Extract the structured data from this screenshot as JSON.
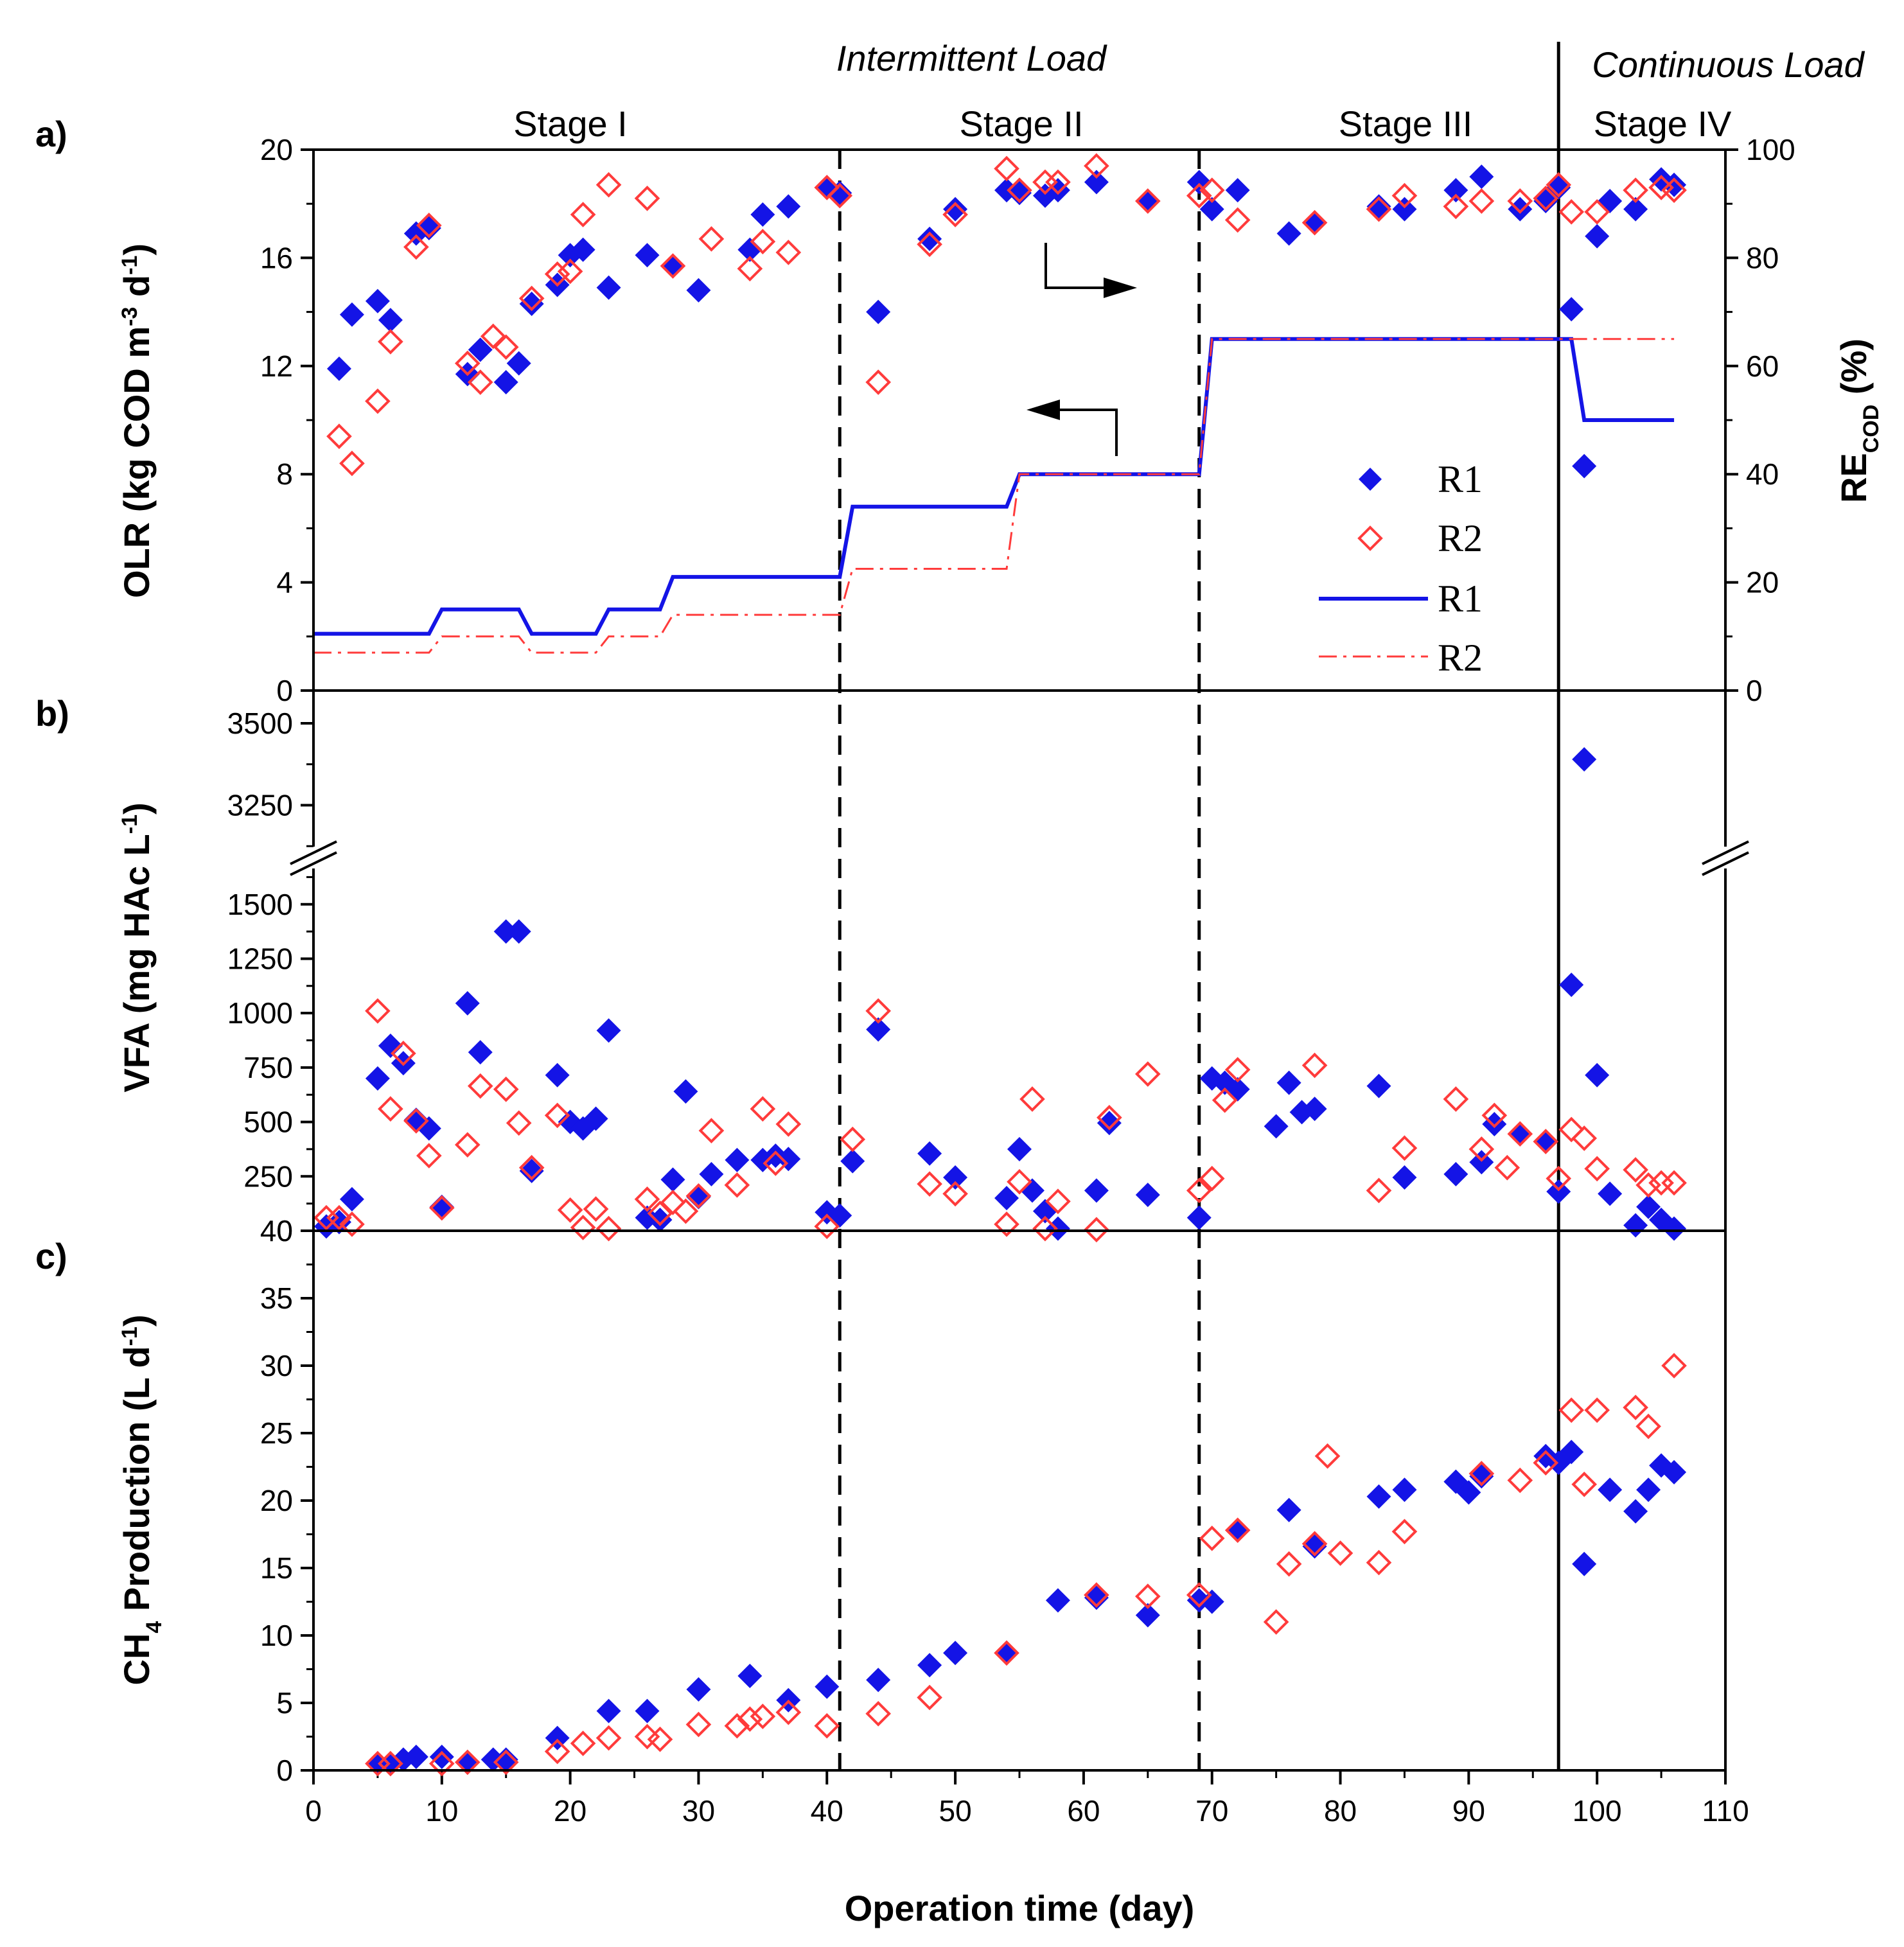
{
  "figure": {
    "x_axis_title": "Operation time (day)",
    "load_labels": {
      "intermittent": "Intermittent Load",
      "continuous": "Continuous Load"
    },
    "stages": [
      "Stage I",
      "Stage II",
      "Stage III",
      "Stage IV"
    ],
    "panel_labels": [
      "a)",
      "b)",
      "c)"
    ],
    "arrows": {
      "right_arrow": "points to right axis (RE)",
      "left_arrow": "points to left axis (OLR)"
    }
  },
  "legend": {
    "r1_marker": "R1",
    "r2_marker": "R2",
    "r1_line": "R1",
    "r2_line": "R2"
  },
  "colors": {
    "r1": "#1414e6",
    "r2": "#ff3b3b",
    "axis": "#000000"
  },
  "chart_data": [
    {
      "type": "line",
      "panel": "a",
      "ylabel": "OLR (kg COD m-3 d-1)",
      "ylabel_parts": {
        "main": "OLR (kg COD m",
        "exp1": "-3",
        "mid": " d",
        "exp2": "-1",
        "end": ")"
      },
      "ylabel_right": "RE COD (%)",
      "ylabel_right_parts": {
        "main": "RE",
        "sub": "COD",
        "end": " (%)"
      },
      "xlim": [
        0,
        110
      ],
      "ylim": [
        0,
        20
      ],
      "ylim_right": [
        0,
        100
      ],
      "yticks": [
        0,
        4,
        8,
        12,
        16,
        20
      ],
      "yticks_right": [
        0,
        20,
        40,
        60,
        80,
        100
      ],
      "olr_series": [
        {
          "name": "R1",
          "style": "solid",
          "x": [
            0,
            9,
            10,
            16,
            17,
            22,
            23,
            27,
            28,
            41,
            42,
            54,
            55,
            69,
            70,
            97,
            98,
            99,
            106
          ],
          "y": [
            2.1,
            2.1,
            3.0,
            3.0,
            2.1,
            2.1,
            3.0,
            3.0,
            4.2,
            4.2,
            6.8,
            6.8,
            8.0,
            8.0,
            13.0,
            13.0,
            13.0,
            10.0,
            10.0
          ]
        },
        {
          "name": "R2",
          "style": "dashdot",
          "x": [
            0,
            9,
            10,
            16,
            17,
            22,
            23,
            27,
            28,
            41,
            42,
            54,
            55,
            69,
            70,
            106
          ],
          "y": [
            1.4,
            1.4,
            2.0,
            2.0,
            1.4,
            1.4,
            2.0,
            2.0,
            2.8,
            2.8,
            4.5,
            4.5,
            8.0,
            8.0,
            13.0,
            13.0
          ]
        }
      ],
      "re_series": [
        {
          "name": "R1",
          "marker": "filled-diamond",
          "x": [
            2,
            3,
            5,
            6,
            8,
            9,
            12,
            13,
            15,
            16,
            17,
            19,
            20,
            21,
            23,
            26,
            28,
            30,
            34,
            35,
            37,
            40,
            41,
            44,
            48,
            50,
            54,
            55,
            57,
            58,
            61,
            65,
            69,
            70,
            72,
            76,
            78,
            83,
            85,
            89,
            91,
            94,
            96,
            97,
            98,
            99,
            100,
            101,
            103,
            105,
            106
          ],
          "y": [
            59.5,
            69.5,
            72,
            68.5,
            84.5,
            85.5,
            58.5,
            63,
            57,
            60.5,
            71.5,
            75,
            80.5,
            81.5,
            74.5,
            80.5,
            78.5,
            74,
            81.5,
            88,
            89.5,
            93,
            92,
            70,
            83.5,
            89,
            92.5,
            92,
            91.5,
            92.5,
            94,
            90.5,
            94,
            89,
            92.5,
            84.5,
            86.5,
            89.5,
            89,
            92.5,
            95,
            89,
            90.5,
            93,
            70.5,
            41.5,
            84,
            90.5,
            89,
            94.5,
            93.5
          ]
        },
        {
          "name": "R2",
          "marker": "open-diamond",
          "x": [
            2,
            3,
            5,
            6,
            8,
            9,
            12,
            13,
            14,
            15,
            17,
            19,
            20,
            21,
            23,
            26,
            28,
            31,
            34,
            35,
            37,
            40,
            41,
            44,
            48,
            50,
            54,
            55,
            57,
            58,
            61,
            65,
            69,
            70,
            72,
            78,
            83,
            85,
            89,
            91,
            94,
            96,
            97,
            98,
            100,
            103,
            105,
            106
          ],
          "y": [
            47,
            42,
            53.5,
            64.5,
            82,
            86,
            60.5,
            57,
            65.5,
            63.5,
            72.5,
            77,
            77.5,
            88,
            93.5,
            91,
            78.5,
            83.5,
            78,
            83,
            81,
            93,
            91.5,
            57,
            82.5,
            88,
            96.5,
            92.5,
            94,
            94,
            97,
            90.5,
            91.5,
            92.5,
            87,
            86.5,
            89,
            91.5,
            89.5,
            90.5,
            90.5,
            91,
            93.5,
            88.5,
            88.5,
            92.5,
            93,
            92.5
          ]
        }
      ]
    },
    {
      "type": "scatter",
      "panel": "b",
      "ylabel": "VFA (mg HAc L-1)",
      "ylabel_parts": {
        "main": "VFA (mg HAc  L",
        "exp": "-1",
        "end": ")"
      },
      "xlim": [
        0,
        110
      ],
      "ylim": [
        0,
        1700
      ],
      "ylim_upper": [
        3100,
        3600
      ],
      "axis_break": true,
      "yticks": [
        0,
        250,
        500,
        750,
        1000,
        1250,
        1500
      ],
      "yticks_upper": [
        3250,
        3500
      ],
      "series": [
        {
          "name": "R1",
          "marker": "filled-diamond",
          "x": [
            1,
            2,
            3,
            5,
            6,
            7,
            8,
            9,
            10,
            12,
            13,
            15,
            16,
            17,
            19,
            20,
            21,
            22,
            23,
            26,
            27,
            28,
            29,
            30,
            31,
            33,
            35,
            36,
            37,
            40,
            41,
            42,
            44,
            48,
            50,
            54,
            55,
            56,
            57,
            58,
            61,
            62,
            65,
            69,
            70,
            71,
            72,
            75,
            76,
            77,
            78,
            83,
            85,
            89,
            91,
            92,
            94,
            96,
            97,
            98,
            99,
            100,
            101,
            103,
            104,
            105,
            106
          ],
          "y": [
            20,
            40,
            145,
            700,
            850,
            770,
            510,
            470,
            110,
            1045,
            820,
            1375,
            1375,
            275,
            715,
            500,
            470,
            515,
            920,
            60,
            50,
            235,
            640,
            155,
            260,
            325,
            325,
            345,
            330,
            85,
            70,
            320,
            925,
            355,
            245,
            150,
            375,
            185,
            90,
            10,
            185,
            495,
            165,
            60,
            700,
            680,
            650,
            480,
            680,
            545,
            560,
            665,
            245,
            260,
            315,
            490,
            445,
            410,
            180,
            1130,
            3390,
            715,
            170,
            25,
            110,
            50,
            10
          ]
        },
        {
          "name": "R2",
          "marker": "open-diamond",
          "x": [
            1,
            2,
            3,
            5,
            6,
            7,
            8,
            9,
            10,
            12,
            13,
            15,
            16,
            17,
            19,
            20,
            21,
            22,
            23,
            26,
            27,
            28,
            29,
            30,
            31,
            33,
            35,
            36,
            37,
            40,
            42,
            44,
            48,
            50,
            54,
            55,
            56,
            57,
            58,
            61,
            62,
            65,
            69,
            70,
            71,
            72,
            78,
            83,
            85,
            89,
            91,
            92,
            93,
            94,
            96,
            97,
            98,
            99,
            100,
            103,
            104,
            105,
            106
          ],
          "y": [
            60,
            60,
            30,
            1010,
            560,
            815,
            505,
            345,
            105,
            395,
            665,
            650,
            495,
            290,
            530,
            95,
            15,
            100,
            10,
            145,
            80,
            130,
            90,
            160,
            460,
            210,
            560,
            310,
            490,
            20,
            420,
            1010,
            215,
            170,
            30,
            225,
            605,
            10,
            135,
            5,
            520,
            720,
            185,
            240,
            600,
            740,
            760,
            185,
            380,
            605,
            375,
            530,
            290,
            445,
            410,
            240,
            465,
            425,
            285,
            280,
            210,
            220,
            220
          ]
        }
      ]
    },
    {
      "type": "scatter",
      "panel": "c",
      "ylabel": "CH4 Production (L d-1)",
      "ylabel_parts": {
        "pre": "CH",
        "sub": "4",
        "main": " Production (L d",
        "exp": "-1",
        "end": ")"
      },
      "xlim": [
        0,
        110
      ],
      "ylim": [
        0,
        40
      ],
      "yticks": [
        0,
        5,
        10,
        15,
        20,
        25,
        30,
        35,
        40
      ],
      "xticks": [
        0,
        10,
        20,
        30,
        40,
        50,
        60,
        70,
        80,
        90,
        100,
        110
      ],
      "series": [
        {
          "name": "R1",
          "marker": "filled-diamond",
          "x": [
            5,
            6,
            7,
            8,
            10,
            12,
            14,
            15,
            19,
            23,
            26,
            30,
            34,
            37,
            40,
            44,
            48,
            50,
            54,
            58,
            61,
            65,
            69,
            70,
            72,
            76,
            78,
            83,
            85,
            89,
            90,
            91,
            96,
            97,
            98,
            99,
            101,
            103,
            104,
            105,
            106
          ],
          "y": [
            0.5,
            0.5,
            0.8,
            1.0,
            1.0,
            0.6,
            0.8,
            0.8,
            2.4,
            4.4,
            4.4,
            6.0,
            7.0,
            5.2,
            6.2,
            6.7,
            7.8,
            8.7,
            8.7,
            12.6,
            12.8,
            11.5,
            12.6,
            12.5,
            17.8,
            19.3,
            16.6,
            20.3,
            20.8,
            21.4,
            20.6,
            21.8,
            23.3,
            22.8,
            23.6,
            15.3,
            20.8,
            19.2,
            20.8,
            22.6,
            22.1
          ]
        },
        {
          "name": "R2",
          "marker": "open-diamond",
          "x": [
            5,
            6,
            10,
            12,
            15,
            19,
            21,
            23,
            26,
            27,
            30,
            33,
            34,
            35,
            37,
            40,
            44,
            48,
            54,
            61,
            65,
            69,
            70,
            72,
            75,
            76,
            78,
            79,
            80,
            83,
            85,
            91,
            94,
            96,
            98,
            99,
            100,
            103,
            104,
            106
          ],
          "y": [
            0.5,
            0.5,
            0.5,
            0.6,
            0.6,
            1.4,
            2.0,
            2.4,
            2.5,
            2.3,
            3.4,
            3.3,
            3.8,
            4.0,
            4.3,
            3.3,
            4.2,
            5.4,
            8.7,
            13.0,
            12.9,
            13.0,
            17.2,
            17.8,
            11.0,
            15.3,
            16.8,
            23.3,
            16.1,
            15.4,
            17.7,
            22.0,
            21.5,
            22.8,
            26.7,
            21.2,
            26.7,
            26.9,
            25.5,
            30.0
          ]
        }
      ]
    }
  ]
}
